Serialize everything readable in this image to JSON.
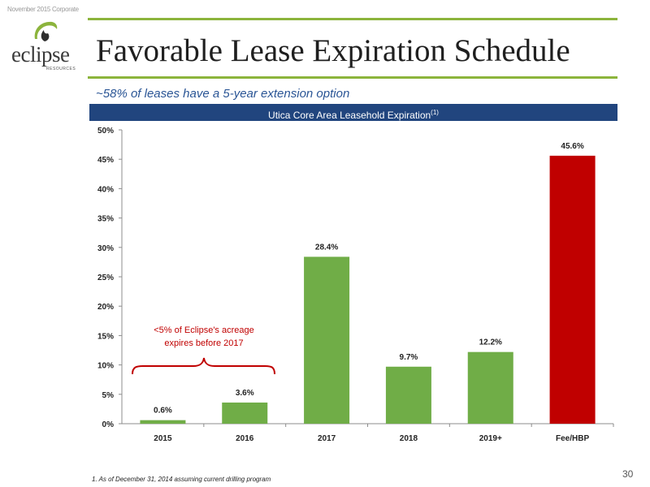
{
  "header": {
    "note": "November 2015 Corporate"
  },
  "logo": {
    "word": "eclipse",
    "sub": "RESOURCES"
  },
  "slide": {
    "title": "Favorable Lease Expiration Schedule",
    "subtitle": "~58% of leases have a 5-year extension option",
    "band_title": "Utica Core Area Leasehold Expiration",
    "band_note": "(1)",
    "annotation_line1": "<5% of Eclipse's acreage",
    "annotation_line2": "expires before 2017",
    "footnote": "1.  As of December 31, 2014 assuming current drilling program",
    "page_number": "30"
  },
  "colors": {
    "green": "#70ad47",
    "red": "#c00000",
    "rule": "#8cb43c",
    "band": "#21457e",
    "annotation": "#c00000"
  },
  "chart_data": {
    "type": "bar",
    "title": "Utica Core Area Leasehold Expiration",
    "categories": [
      "2015",
      "2016",
      "2017",
      "2018",
      "2019+",
      "Fee/HBP"
    ],
    "values": [
      0.6,
      3.6,
      28.4,
      9.7,
      12.2,
      45.6
    ],
    "value_labels": [
      "0.6%",
      "3.6%",
      "28.4%",
      "9.7%",
      "12.2%",
      "45.6%"
    ],
    "bar_colors": [
      "#70ad47",
      "#70ad47",
      "#70ad47",
      "#70ad47",
      "#70ad47",
      "#c00000"
    ],
    "ylim": [
      0,
      50
    ],
    "yticks": [
      0,
      5,
      10,
      15,
      20,
      25,
      30,
      35,
      40,
      45,
      50
    ],
    "ytick_labels": [
      "0%",
      "5%",
      "10%",
      "15%",
      "20%",
      "25%",
      "30%",
      "35%",
      "40%",
      "45%",
      "50%"
    ],
    "xlabel": "",
    "ylabel": "",
    "grid": false,
    "legend": "none"
  }
}
